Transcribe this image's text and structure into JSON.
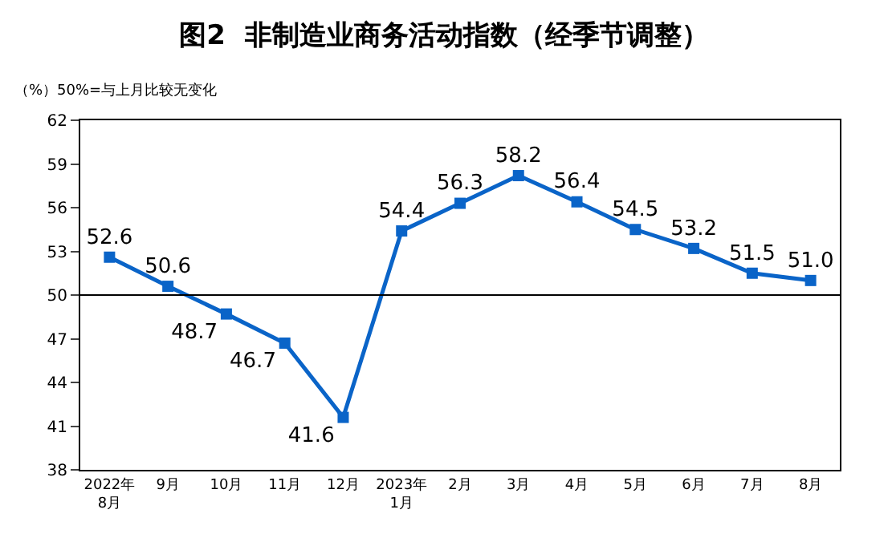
{
  "chart_data": {
    "type": "line",
    "title": "图2  非制造业商务活动指数（经季节调整）",
    "ylabel": "（%）50%=与上月比较无变化",
    "categories": [
      "2022年\n8月",
      "9月",
      "10月",
      "11月",
      "12月",
      "2023年\n1月",
      "2月",
      "3月",
      "4月",
      "5月",
      "6月",
      "7月",
      "8月"
    ],
    "series": [
      {
        "color": "#0a64c8",
        "values": [
          52.6,
          50.6,
          48.7,
          46.7,
          41.6,
          54.4,
          56.3,
          58.2,
          56.4,
          54.5,
          53.2,
          51.5,
          51.0
        ]
      }
    ],
    "ylim": [
      38,
      62
    ],
    "yticks": [
      38,
      41,
      44,
      47,
      50,
      53,
      56,
      59,
      62
    ],
    "ref_lines": [
      {
        "axis": "y",
        "value": 50,
        "color": "#000000"
      }
    ],
    "value_labels": [
      "52.6",
      "50.6",
      "48.7",
      "46.7",
      "41.6",
      "54.4",
      "56.3",
      "58.2",
      "56.4",
      "54.5",
      "53.2",
      "51.5",
      "51.0"
    ],
    "marker": "square",
    "line_style": "solid"
  }
}
